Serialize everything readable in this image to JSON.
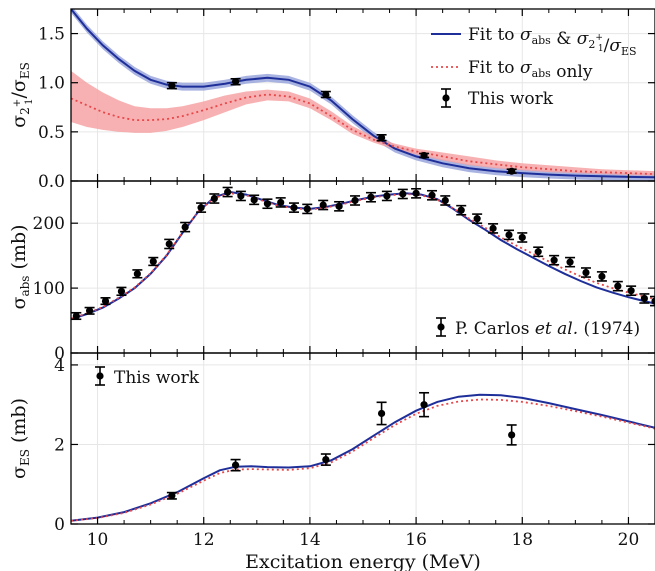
{
  "chart_data": {
    "type": "line",
    "xlabel": "Excitation energy (MeV)",
    "xlim": [
      9.5,
      20.5
    ],
    "x_ticks": [
      "10",
      "12",
      "14",
      "16",
      "18",
      "20"
    ],
    "colors": {
      "blue": "#1f2f9a",
      "red": "#e8474a",
      "band": "#f6a3a5",
      "blueband": "#9aa6dc",
      "marker": "#000000"
    },
    "panels": [
      {
        "id": "ratio",
        "ylabel": "σ2₁⁺/σES",
        "ylim": [
          0,
          1.75
        ],
        "y_ticks": [
          "0.0",
          "0.5",
          "1.0",
          "1.5"
        ],
        "y_tick_values": [
          0,
          0.5,
          1.0,
          1.5
        ],
        "legend": {
          "position": "top-right",
          "entries": [
            {
              "label": "Fit to σabs & σ2₁⁺/σES",
              "style": "solid-blue"
            },
            {
              "label": "Fit to σabs only",
              "style": "dotted-red"
            },
            {
              "label": "This work",
              "style": "errorbar"
            }
          ]
        },
        "series": [
          {
            "name": "Fit to σabs & σ2₁⁺/σES",
            "x": [
              9.5,
              9.8,
              10.1,
              10.4,
              10.7,
              11.0,
              11.3,
              11.6,
              12.0,
              12.4,
              12.8,
              13.2,
              13.6,
              14.0,
              14.4,
              14.8,
              15.2,
              15.6,
              16.0,
              16.5,
              17.0,
              17.5,
              18.0,
              18.5,
              19.0,
              19.5,
              20.0,
              20.5
            ],
            "y": [
              1.75,
              1.55,
              1.38,
              1.24,
              1.12,
              1.03,
              0.98,
              0.96,
              0.96,
              0.99,
              1.03,
              1.05,
              1.03,
              0.96,
              0.82,
              0.63,
              0.46,
              0.33,
              0.25,
              0.18,
              0.13,
              0.1,
              0.08,
              0.065,
              0.055,
              0.048,
              0.042,
              0.038
            ],
            "band_halfwidth": 0.04
          },
          {
            "name": "Fit to σabs only",
            "x": [
              9.5,
              9.8,
              10.1,
              10.4,
              10.7,
              11.0,
              11.3,
              11.6,
              12.0,
              12.4,
              12.8,
              13.2,
              13.6,
              14.0,
              14.4,
              14.8,
              15.2,
              15.6,
              16.0,
              16.5,
              17.0,
              17.5,
              18.0,
              18.5,
              19.0,
              19.5,
              20.0,
              20.5
            ],
            "y": [
              0.84,
              0.77,
              0.7,
              0.65,
              0.62,
              0.62,
              0.63,
              0.66,
              0.72,
              0.79,
              0.85,
              0.88,
              0.86,
              0.79,
              0.66,
              0.52,
              0.42,
              0.35,
              0.3,
              0.25,
              0.2,
              0.17,
              0.14,
              0.12,
              0.1,
              0.09,
              0.08,
              0.07
            ],
            "band_lower": [
              0.6,
              0.55,
              0.52,
              0.5,
              0.49,
              0.49,
              0.51,
              0.55,
              0.62,
              0.7,
              0.78,
              0.82,
              0.81,
              0.74,
              0.62,
              0.48,
              0.39,
              0.32,
              0.27,
              0.21,
              0.16,
              0.13,
              0.11,
              0.09,
              0.08,
              0.07,
              0.06,
              0.055
            ],
            "band_upper": [
              1.12,
              1.0,
              0.9,
              0.82,
              0.76,
              0.74,
              0.74,
              0.76,
              0.81,
              0.87,
              0.91,
              0.93,
              0.91,
              0.84,
              0.71,
              0.56,
              0.45,
              0.38,
              0.33,
              0.29,
              0.25,
              0.21,
              0.18,
              0.16,
              0.14,
              0.12,
              0.11,
              0.1
            ]
          },
          {
            "name": "This work",
            "points": [
              {
                "x": 11.4,
                "y": 0.97,
                "err": 0.03
              },
              {
                "x": 12.6,
                "y": 1.01,
                "err": 0.03
              },
              {
                "x": 14.3,
                "y": 0.88,
                "err": 0.03
              },
              {
                "x": 15.35,
                "y": 0.44,
                "err": 0.03
              },
              {
                "x": 16.15,
                "y": 0.26,
                "err": 0.02
              },
              {
                "x": 17.8,
                "y": 0.1,
                "err": 0.02
              }
            ]
          }
        ]
      },
      {
        "id": "abs",
        "ylabel": "σabs (mb)",
        "ylim": [
          0,
          265
        ],
        "y_ticks": [
          "0",
          "100",
          "200"
        ],
        "y_tick_values": [
          0,
          100,
          200
        ],
        "legend": {
          "position": "bottom-right",
          "entries": [
            {
              "label": "P. Carlos et al. (1974)",
              "style": "errorbar"
            }
          ]
        },
        "series": [
          {
            "name": "Fit to σabs & σ2₁⁺/σES",
            "x": [
              9.5,
              9.8,
              10.1,
              10.4,
              10.7,
              11.0,
              11.3,
              11.6,
              11.9,
              12.2,
              12.5,
              12.8,
              13.1,
              13.4,
              13.7,
              14.0,
              14.3,
              14.6,
              14.9,
              15.2,
              15.5,
              15.8,
              16.1,
              16.4,
              16.7,
              17.0,
              17.3,
              17.6,
              17.9,
              18.2,
              18.5,
              18.8,
              19.1,
              19.4,
              19.7,
              20.0,
              20.3,
              20.5
            ],
            "y": [
              52,
              60,
              70,
              84,
              100,
              122,
              150,
              185,
              218,
              240,
              248,
              244,
              236,
              228,
              224,
              222,
              225,
              230,
              236,
              241,
              244,
              246,
              244,
              237,
              222,
              205,
              190,
              174,
              160,
              147,
              134,
              122,
              111,
              101,
              93,
              86,
              80,
              76
            ]
          },
          {
            "name": "Fit to σabs only",
            "x": [
              9.5,
              9.8,
              10.1,
              10.4,
              10.7,
              11.0,
              11.3,
              11.6,
              11.9,
              12.2,
              12.5,
              12.8,
              13.1,
              13.4,
              13.7,
              14.0,
              14.3,
              14.6,
              14.9,
              15.2,
              15.5,
              15.8,
              16.1,
              16.4,
              16.7,
              17.0,
              17.3,
              17.6,
              17.9,
              18.2,
              18.5,
              18.8,
              19.1,
              19.4,
              19.7,
              20.0,
              20.3,
              20.5
            ],
            "y": [
              53,
              61,
              71,
              85,
              101,
              123,
              151,
              186,
              218,
              239,
              246,
              243,
              235,
              227,
              223,
              221,
              224,
              229,
              235,
              240,
              243,
              245,
              243,
              236,
              223,
              207,
              193,
              178,
              165,
              153,
              141,
              129,
              118,
              108,
              100,
              93,
              87,
              83
            ]
          },
          {
            "name": "P. Carlos et al. (1974)",
            "points": [
              {
                "x": 9.6,
                "y": 57,
                "err": 5
              },
              {
                "x": 9.85,
                "y": 65,
                "err": 5
              },
              {
                "x": 10.15,
                "y": 80,
                "err": 5
              },
              {
                "x": 10.45,
                "y": 95,
                "err": 6
              },
              {
                "x": 10.75,
                "y": 122,
                "err": 6
              },
              {
                "x": 11.05,
                "y": 141,
                "err": 6
              },
              {
                "x": 11.35,
                "y": 168,
                "err": 7
              },
              {
                "x": 11.65,
                "y": 194,
                "err": 7
              },
              {
                "x": 11.95,
                "y": 224,
                "err": 7
              },
              {
                "x": 12.2,
                "y": 238,
                "err": 7
              },
              {
                "x": 12.45,
                "y": 248,
                "err": 7
              },
              {
                "x": 12.7,
                "y": 242,
                "err": 7
              },
              {
                "x": 12.95,
                "y": 236,
                "err": 7
              },
              {
                "x": 13.2,
                "y": 230,
                "err": 7
              },
              {
                "x": 13.45,
                "y": 232,
                "err": 7
              },
              {
                "x": 13.7,
                "y": 224,
                "err": 7
              },
              {
                "x": 13.95,
                "y": 222,
                "err": 7
              },
              {
                "x": 14.25,
                "y": 228,
                "err": 7
              },
              {
                "x": 14.55,
                "y": 226,
                "err": 7
              },
              {
                "x": 14.85,
                "y": 235,
                "err": 7
              },
              {
                "x": 15.15,
                "y": 240,
                "err": 7
              },
              {
                "x": 15.45,
                "y": 242,
                "err": 7
              },
              {
                "x": 15.75,
                "y": 245,
                "err": 7
              },
              {
                "x": 16.0,
                "y": 246,
                "err": 7
              },
              {
                "x": 16.3,
                "y": 243,
                "err": 7
              },
              {
                "x": 16.55,
                "y": 235,
                "err": 7
              },
              {
                "x": 16.85,
                "y": 220,
                "err": 7
              },
              {
                "x": 17.15,
                "y": 207,
                "err": 7
              },
              {
                "x": 17.45,
                "y": 192,
                "err": 7
              },
              {
                "x": 17.75,
                "y": 182,
                "err": 7
              },
              {
                "x": 18.0,
                "y": 178,
                "err": 7
              },
              {
                "x": 18.3,
                "y": 156,
                "err": 7
              },
              {
                "x": 18.6,
                "y": 143,
                "err": 7
              },
              {
                "x": 18.9,
                "y": 140,
                "err": 7
              },
              {
                "x": 19.2,
                "y": 124,
                "err": 7
              },
              {
                "x": 19.5,
                "y": 118,
                "err": 7
              },
              {
                "x": 19.8,
                "y": 103,
                "err": 7
              },
              {
                "x": 20.05,
                "y": 96,
                "err": 7
              },
              {
                "x": 20.3,
                "y": 84,
                "err": 7
              },
              {
                "x": 20.5,
                "y": 80,
                "err": 7
              }
            ]
          }
        ]
      },
      {
        "id": "es",
        "ylabel": "σES (mb)",
        "ylim": [
          0,
          4.3
        ],
        "y_ticks": [
          "0",
          "2",
          "4"
        ],
        "y_tick_values": [
          0,
          2,
          4
        ],
        "legend": {
          "position": "top-left",
          "entries": [
            {
              "label": "This work",
              "style": "errorbar"
            }
          ]
        },
        "series": [
          {
            "name": "Fit to σabs & σ2₁⁺/σES",
            "x": [
              9.5,
              10.0,
              10.5,
              11.0,
              11.5,
              12.0,
              12.3,
              12.6,
              12.9,
              13.2,
              13.6,
              14.0,
              14.4,
              14.8,
              15.2,
              15.6,
              16.0,
              16.4,
              16.8,
              17.2,
              17.6,
              18.0,
              18.5,
              19.0,
              19.5,
              20.0,
              20.5
            ],
            "y": [
              0.08,
              0.16,
              0.3,
              0.52,
              0.8,
              1.15,
              1.35,
              1.44,
              1.45,
              1.43,
              1.42,
              1.45,
              1.6,
              1.88,
              2.22,
              2.56,
              2.85,
              3.07,
              3.2,
              3.25,
              3.24,
              3.17,
              3.04,
              2.89,
              2.74,
              2.58,
              2.42
            ]
          },
          {
            "name": "Fit to σabs only",
            "x": [
              9.5,
              10.0,
              10.5,
              11.0,
              11.5,
              12.0,
              12.3,
              12.6,
              12.9,
              13.2,
              13.6,
              14.0,
              14.4,
              14.8,
              15.2,
              15.6,
              16.0,
              16.4,
              16.8,
              17.2,
              17.6,
              18.0,
              18.5,
              19.0,
              19.5,
              20.0,
              20.5
            ],
            "y": [
              0.08,
              0.15,
              0.28,
              0.49,
              0.76,
              1.09,
              1.28,
              1.37,
              1.38,
              1.37,
              1.36,
              1.4,
              1.55,
              1.82,
              2.16,
              2.49,
              2.77,
              2.97,
              3.08,
              3.13,
              3.12,
              3.07,
              2.97,
              2.84,
              2.7,
              2.55,
              2.4
            ]
          },
          {
            "name": "This work",
            "points": [
              {
                "x": 11.4,
                "y": 0.71,
                "err": 0.08
              },
              {
                "x": 12.6,
                "y": 1.48,
                "err": 0.14
              },
              {
                "x": 14.3,
                "y": 1.62,
                "err": 0.14
              },
              {
                "x": 15.35,
                "y": 2.78,
                "err": 0.28
              },
              {
                "x": 16.15,
                "y": 3.0,
                "err": 0.3
              },
              {
                "x": 17.8,
                "y": 2.24,
                "err": 0.25
              }
            ]
          }
        ]
      }
    ]
  }
}
